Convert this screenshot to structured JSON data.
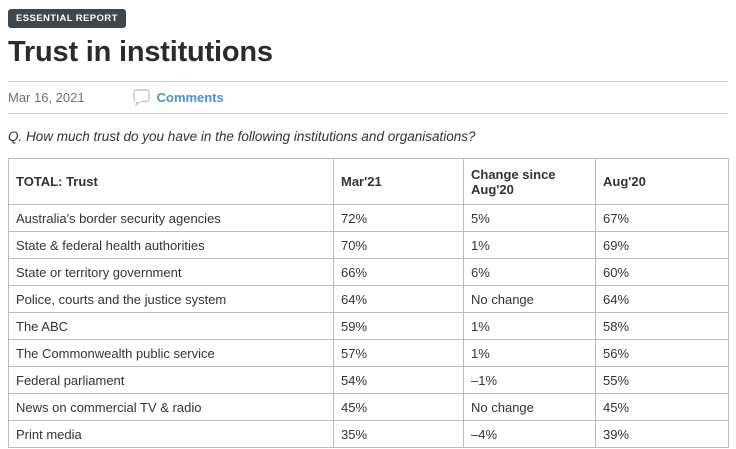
{
  "badge": {
    "label": "ESSENTIAL REPORT"
  },
  "header": {
    "title": "Trust in institutions",
    "date": "Mar 16, 2021",
    "comments_label": "Comments",
    "comments_icon": "speech-bubble"
  },
  "question": "Q. How much trust do you have in the following institutions and organisations?",
  "table": {
    "columns": [
      "TOTAL: Trust",
      "Mar'21",
      "Change since Aug'20",
      "Aug'20"
    ],
    "rows": [
      [
        "Australia's border security agencies",
        "72%",
        "5%",
        "67%"
      ],
      [
        "State & federal health authorities",
        "70%",
        "1%",
        "69%"
      ],
      [
        "State or territory government",
        "66%",
        "6%",
        "60%"
      ],
      [
        "Police, courts and the justice system",
        "64%",
        "No change",
        "64%"
      ],
      [
        "The ABC",
        "59%",
        "1%",
        "58%"
      ],
      [
        "The Commonwealth public service",
        "57%",
        "1%",
        "56%"
      ],
      [
        "Federal parliament",
        "54%",
        "–1%",
        "55%"
      ],
      [
        "News on commercial TV & radio",
        "45%",
        "No change",
        "45%"
      ],
      [
        "Print media",
        "35%",
        "–4%",
        "39%"
      ]
    ]
  },
  "colors": {
    "badge_bg": "#3f464c",
    "badge_text": "#ffffff",
    "link_blue": "#4a90d9",
    "date_text": "#6d7278",
    "table_border": "#bdbdbd",
    "heading_text": "#2b2b2b",
    "body_text": "#333333"
  }
}
